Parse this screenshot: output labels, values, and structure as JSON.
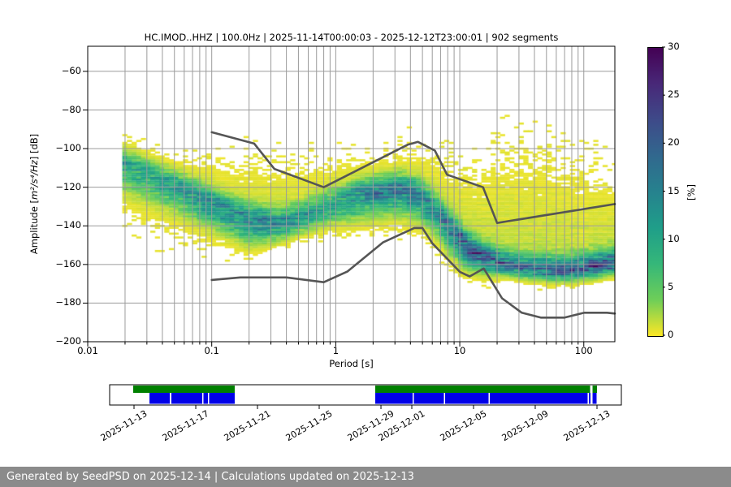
{
  "title": "HC.IMOD..HHZ | 100.0Hz | 2025-11-14T00:00:03 - 2025-12-12T23:00:01 | 902 segments",
  "footer": {
    "text": "Generated by SeedPSD on 2025-12-14 | Calculations updated on 2025-12-13",
    "bg": "#8b8b8b"
  },
  "chart_data": {
    "type": "heatmap",
    "title": "HC.IMOD..HHZ | 100.0Hz | 2025-11-14T00:00:03 - 2025-12-12T23:00:01 | 902 segments",
    "xlabel": "Period [s]",
    "ylabel": {
      "prefix": "Amplitude [",
      "units_italic": "m²/s⁴/Hz",
      "suffix": "] [dB]"
    },
    "x_scale": "log",
    "xlim": [
      0.01,
      178
    ],
    "ylim": [
      -200,
      -47
    ],
    "grid": true,
    "grid_color": "#9b9b9b",
    "x_ticks": [
      {
        "value": 0.01,
        "label": "0.01"
      },
      {
        "value": 0.1,
        "label": "0.1"
      },
      {
        "value": 1,
        "label": "1"
      },
      {
        "value": 10,
        "label": "10"
      },
      {
        "value": 100,
        "label": "100"
      }
    ],
    "y_ticks": [
      {
        "value": -60,
        "label": "−60"
      },
      {
        "value": -80,
        "label": "−80"
      },
      {
        "value": -100,
        "label": "−100"
      },
      {
        "value": -120,
        "label": "−120"
      },
      {
        "value": -140,
        "label": "−140"
      },
      {
        "value": -160,
        "label": "−160"
      },
      {
        "value": -180,
        "label": "−180"
      },
      {
        "value": -200,
        "label": "−200"
      }
    ],
    "colorbar": {
      "label": "[%]",
      "min": 0,
      "max": 30,
      "ticks": [
        {
          "value": 0,
          "label": "0"
        },
        {
          "value": 5,
          "label": "5"
        },
        {
          "value": 10,
          "label": "10"
        },
        {
          "value": 15,
          "label": "15"
        },
        {
          "value": 20,
          "label": "20"
        },
        {
          "value": 25,
          "label": "25"
        },
        {
          "value": 30,
          "label": "30"
        }
      ],
      "colormap": "viridis reversed (0%=yellow, 30%=dark purple)",
      "viridis_stops": [
        [
          0.0,
          "#440154"
        ],
        [
          0.125,
          "#482878"
        ],
        [
          0.25,
          "#3e4a89"
        ],
        [
          0.375,
          "#31688e"
        ],
        [
          0.5,
          "#26828e"
        ],
        [
          0.625,
          "#1f9e89"
        ],
        [
          0.75,
          "#35b779"
        ],
        [
          0.875,
          "#6ece58"
        ],
        [
          1.0,
          "#fde725"
        ]
      ]
    },
    "histogram": {
      "description": "PPSD probability cloud: per log-spaced period, mode of distribution, upper/lower ~1% envelopes [dB], and peak probability [%]",
      "period_bin_decades": 0.0376,
      "db_bin": 1,
      "periods": [
        0.019,
        0.03,
        0.05,
        0.08,
        0.12,
        0.18,
        0.25,
        0.35,
        0.5,
        0.7,
        1.0,
        1.5,
        2.2,
        3.2,
        4.5,
        6.0,
        8.0,
        11,
        15,
        22,
        32,
        50,
        80,
        125,
        178
      ],
      "mode_db": [
        -109,
        -114,
        -120,
        -126,
        -131,
        -136,
        -138,
        -139,
        -136,
        -132,
        -128,
        -124,
        -122,
        -121,
        -124,
        -131,
        -141,
        -151,
        -157,
        -160,
        -162,
        -163,
        -163,
        -161,
        -159
      ],
      "upper_db": [
        -93,
        -99,
        -103,
        -104,
        -105,
        -104,
        -104,
        -105,
        -105,
        -105,
        -104,
        -103,
        -101,
        -99,
        -98,
        -101,
        -104,
        -106,
        -101,
        -91,
        -93,
        -96,
        -100,
        -106,
        -112
      ],
      "lower_db": [
        -144,
        -147,
        -150,
        -152,
        -153,
        -152,
        -151,
        -149,
        -146,
        -143,
        -141,
        -140,
        -141,
        -143,
        -147,
        -153,
        -159,
        -164,
        -166,
        -167,
        -168,
        -168,
        -167,
        -166,
        -165
      ],
      "peak_percent": [
        9,
        9,
        10,
        11,
        12,
        13,
        13,
        12,
        10,
        9,
        10,
        12,
        14,
        15,
        13,
        12,
        15,
        19,
        20,
        17,
        15,
        16,
        18,
        20,
        19
      ]
    },
    "noise_models": {
      "name": "Peterson (1993) NHNM / NLNM reference curves",
      "color": "#555555",
      "high": [
        [
          0.1,
          -91.5
        ],
        [
          0.22,
          -97.4
        ],
        [
          0.32,
          -110.5
        ],
        [
          0.8,
          -120.0
        ],
        [
          3.8,
          -98.0
        ],
        [
          4.6,
          -96.5
        ],
        [
          6.3,
          -101.0
        ],
        [
          7.9,
          -113.5
        ],
        [
          15.4,
          -120.0
        ],
        [
          20.0,
          -138.5
        ],
        [
          178,
          -128.7
        ]
      ],
      "low": [
        [
          0.1,
          -168.0
        ],
        [
          0.17,
          -166.7
        ],
        [
          0.4,
          -166.7
        ],
        [
          0.8,
          -169.2
        ],
        [
          1.24,
          -163.7
        ],
        [
          2.4,
          -148.6
        ],
        [
          4.3,
          -141.1
        ],
        [
          5.0,
          -141.1
        ],
        [
          6.0,
          -149.0
        ],
        [
          10.0,
          -163.8
        ],
        [
          12.0,
          -166.2
        ],
        [
          15.6,
          -162.1
        ],
        [
          21.9,
          -177.5
        ],
        [
          31.6,
          -185.0
        ],
        [
          45.0,
          -187.5
        ],
        [
          70.0,
          -187.5
        ],
        [
          101.0,
          -185.0
        ],
        [
          154.0,
          -185.0
        ],
        [
          178,
          -185.4
        ]
      ]
    }
  },
  "timeline": {
    "green_color": "#008000",
    "blue_color": "#0000e8",
    "ticks": [
      {
        "label": "2025-11-13",
        "pos": 0.0476
      },
      {
        "label": "2025-11-17",
        "pos": 0.1683
      },
      {
        "label": "2025-11-21",
        "pos": 0.2889
      },
      {
        "label": "2025-11-25",
        "pos": 0.4095
      },
      {
        "label": "2025-11-29",
        "pos": 0.5302
      },
      {
        "label": "2025-12-01",
        "pos": 0.5905
      },
      {
        "label": "2025-12-05",
        "pos": 0.7111
      },
      {
        "label": "2025-12-09",
        "pos": 0.8317
      },
      {
        "label": "2025-12-13",
        "pos": 0.9524
      }
    ],
    "green_segments": [
      {
        "start": 0.046,
        "end": 0.2444
      },
      {
        "start": 0.519,
        "end": 0.939
      },
      {
        "start": 0.9437,
        "end": 0.9524
      }
    ],
    "blue_segments": [
      {
        "start": 0.0778,
        "end": 0.1175
      },
      {
        "start": 0.1206,
        "end": 0.181
      },
      {
        "start": 0.1833,
        "end": 0.1921
      },
      {
        "start": 0.1944,
        "end": 0.2444
      },
      {
        "start": 0.519,
        "end": 0.5921
      },
      {
        "start": 0.5944,
        "end": 0.6532
      },
      {
        "start": 0.6556,
        "end": 0.7405
      },
      {
        "start": 0.7429,
        "end": 0.9341
      },
      {
        "start": 0.9365,
        "end": 0.9397
      },
      {
        "start": 0.9437,
        "end": 0.9516
      }
    ]
  }
}
